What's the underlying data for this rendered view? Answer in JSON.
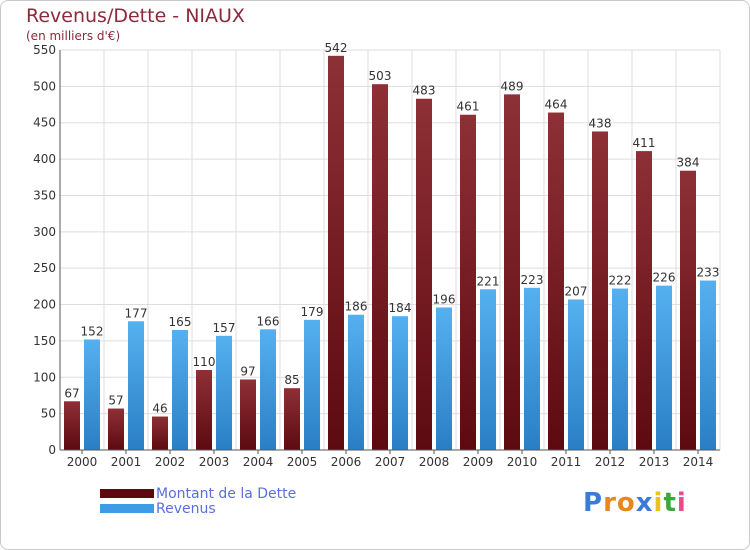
{
  "title": "Revenus/Dette - NIAUX",
  "subtitle": "(en milliers d'€)",
  "logo_text": "Proxiti",
  "colors": {
    "debt": "#7a1c22",
    "revenue": "#3d9ce6",
    "title": "#8b2a3a",
    "legend_text": "#5a6ee0"
  },
  "chart_data": {
    "type": "bar",
    "title": "Revenus/Dette - NIAUX",
    "ylabel": "(en milliers d'€)",
    "categories": [
      "2000",
      "2001",
      "2002",
      "2003",
      "2004",
      "2005",
      "2006",
      "2007",
      "2008",
      "2009",
      "2010",
      "2011",
      "2012",
      "2013",
      "2014"
    ],
    "ylim": [
      0,
      550
    ],
    "yticks": [
      0,
      50,
      100,
      150,
      200,
      250,
      300,
      350,
      400,
      450,
      500,
      550
    ],
    "grid": true,
    "legend_position": "bottom-left",
    "series": [
      {
        "name": "Montant de la Dette",
        "values": [
          67,
          57,
          46,
          110,
          97,
          85,
          542,
          503,
          483,
          461,
          489,
          464,
          438,
          411,
          384
        ]
      },
      {
        "name": "Revenus",
        "values": [
          152,
          177,
          165,
          157,
          166,
          179,
          186,
          184,
          196,
          221,
          223,
          207,
          222,
          226,
          233
        ]
      }
    ]
  }
}
